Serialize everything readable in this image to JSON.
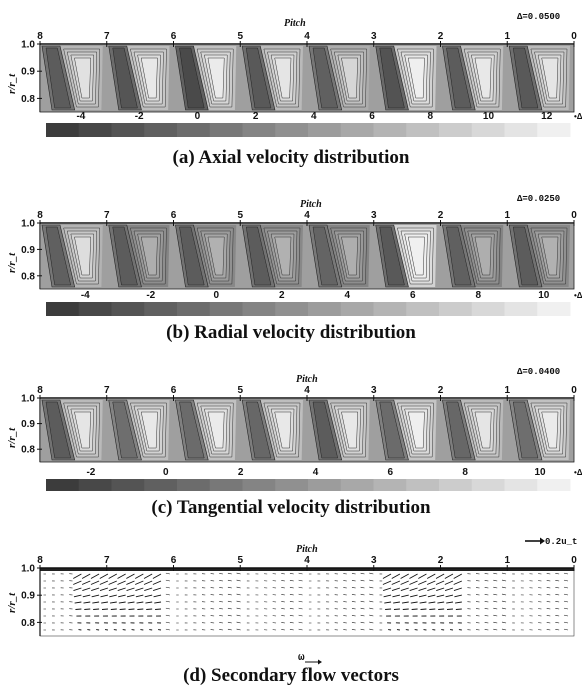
{
  "pitch_label": "Pitch",
  "y_axis_label": "r/r_t",
  "y_ticks": [
    "1.0",
    "0.9",
    "0.8"
  ],
  "pitch_ticks": [
    "8",
    "7",
    "6",
    "5",
    "4",
    "3",
    "2",
    "1",
    "0"
  ],
  "colorbar_end_symbol": "•Δ",
  "panels": [
    {
      "caption": "(a) Axial velocity distribution",
      "delta": "Δ=0.0500",
      "colorbar_labels": [
        "-4",
        "-2",
        "0",
        "2",
        "4",
        "6",
        "8",
        "10",
        "12"
      ]
    },
    {
      "caption": "(b) Radial velocity distribution",
      "delta": "Δ=0.0250",
      "colorbar_labels": [
        "-4",
        "-2",
        "0",
        "2",
        "4",
        "6",
        "8",
        "10"
      ]
    },
    {
      "caption": "(c) Tangential velocity distribution",
      "delta": "Δ=0.0400",
      "colorbar_labels": [
        "-2",
        "0",
        "2",
        "4",
        "6",
        "8",
        "10"
      ]
    },
    {
      "caption": "(d) Secondary flow vectors",
      "reference_vector": "0.2u_t",
      "omega_symbol": "ω"
    }
  ],
  "chart_data": [
    {
      "type": "heatmap",
      "title": "(a) Axial velocity distribution",
      "xlabel": "Pitch",
      "ylabel": "r/r_t",
      "x_range": [
        8,
        0
      ],
      "y_range": [
        0.75,
        1.0
      ],
      "contour_interval": "Δ=0.0500",
      "colorbar_levels": [
        -4,
        -2,
        0,
        2,
        4,
        6,
        8,
        10,
        12
      ]
    },
    {
      "type": "heatmap",
      "title": "(b) Radial velocity distribution",
      "xlabel": "Pitch",
      "ylabel": "r/r_t",
      "x_range": [
        8,
        0
      ],
      "y_range": [
        0.75,
        1.0
      ],
      "contour_interval": "Δ=0.0250",
      "colorbar_levels": [
        -4,
        -2,
        0,
        2,
        4,
        6,
        8,
        10
      ]
    },
    {
      "type": "heatmap",
      "title": "(c) Tangential velocity distribution",
      "xlabel": "Pitch",
      "ylabel": "r/r_t",
      "x_range": [
        8,
        0
      ],
      "y_range": [
        0.75,
        1.0
      ],
      "contour_interval": "Δ=0.0400",
      "colorbar_levels": [
        -2,
        0,
        2,
        4,
        6,
        8,
        10
      ]
    },
    {
      "type": "scatter",
      "title": "(d) Secondary flow vectors",
      "xlabel": "Pitch",
      "ylabel": "r/r_t",
      "x_range": [
        8,
        0
      ],
      "y_range": [
        0.75,
        1.0
      ],
      "reference_vector": "0.2u_t"
    }
  ]
}
